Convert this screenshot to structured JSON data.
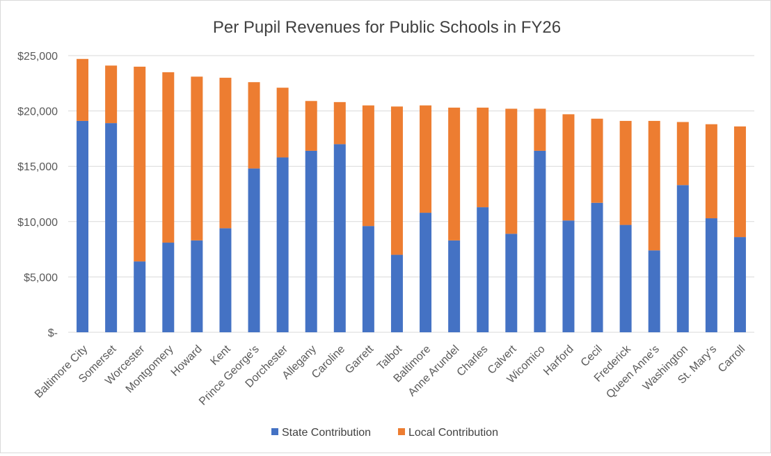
{
  "chart_data": {
    "type": "bar",
    "stacked": true,
    "title": "Per Pupil Revenues for Public Schools in FY26",
    "xlabel": "",
    "ylabel": "",
    "ylim": [
      0,
      25000
    ],
    "y_ticks": [
      0,
      5000,
      10000,
      15000,
      20000,
      25000
    ],
    "y_tick_labels": [
      "$-",
      "$5,000",
      "$10,000",
      "$15,000",
      "$20,000",
      "$25,000"
    ],
    "grid": true,
    "legend_position": "bottom",
    "categories": [
      "Baltimore City",
      "Somerset",
      "Worcester",
      "Montgomery",
      "Howard",
      "Kent",
      "Prince George's",
      "Dorchester",
      "Allegany",
      "Caroline",
      "Garrett",
      "Talbot",
      "Baltimore",
      "Anne Arundel",
      "Charles",
      "Calvert",
      "Wicomico",
      "Harford",
      "Cecil",
      "Frederick",
      "Queen Anne's",
      "Washington",
      "St. Mary's",
      "Carroll"
    ],
    "series": [
      {
        "name": "State Contribution",
        "color": "#4472c4",
        "values": [
          19100,
          18900,
          6400,
          8100,
          8300,
          9400,
          14800,
          15800,
          16400,
          17000,
          9600,
          7000,
          10800,
          8300,
          11300,
          8900,
          16400,
          10100,
          11700,
          9700,
          7400,
          13300,
          10300,
          8600
        ]
      },
      {
        "name": "Local Contribution",
        "color": "#ed7d31",
        "values": [
          5600,
          5200,
          17600,
          15400,
          14800,
          13600,
          7800,
          6300,
          4500,
          3800,
          10900,
          13400,
          9700,
          12000,
          9000,
          11300,
          3800,
          9600,
          7600,
          9400,
          11700,
          5700,
          8500,
          10000
        ]
      }
    ]
  }
}
